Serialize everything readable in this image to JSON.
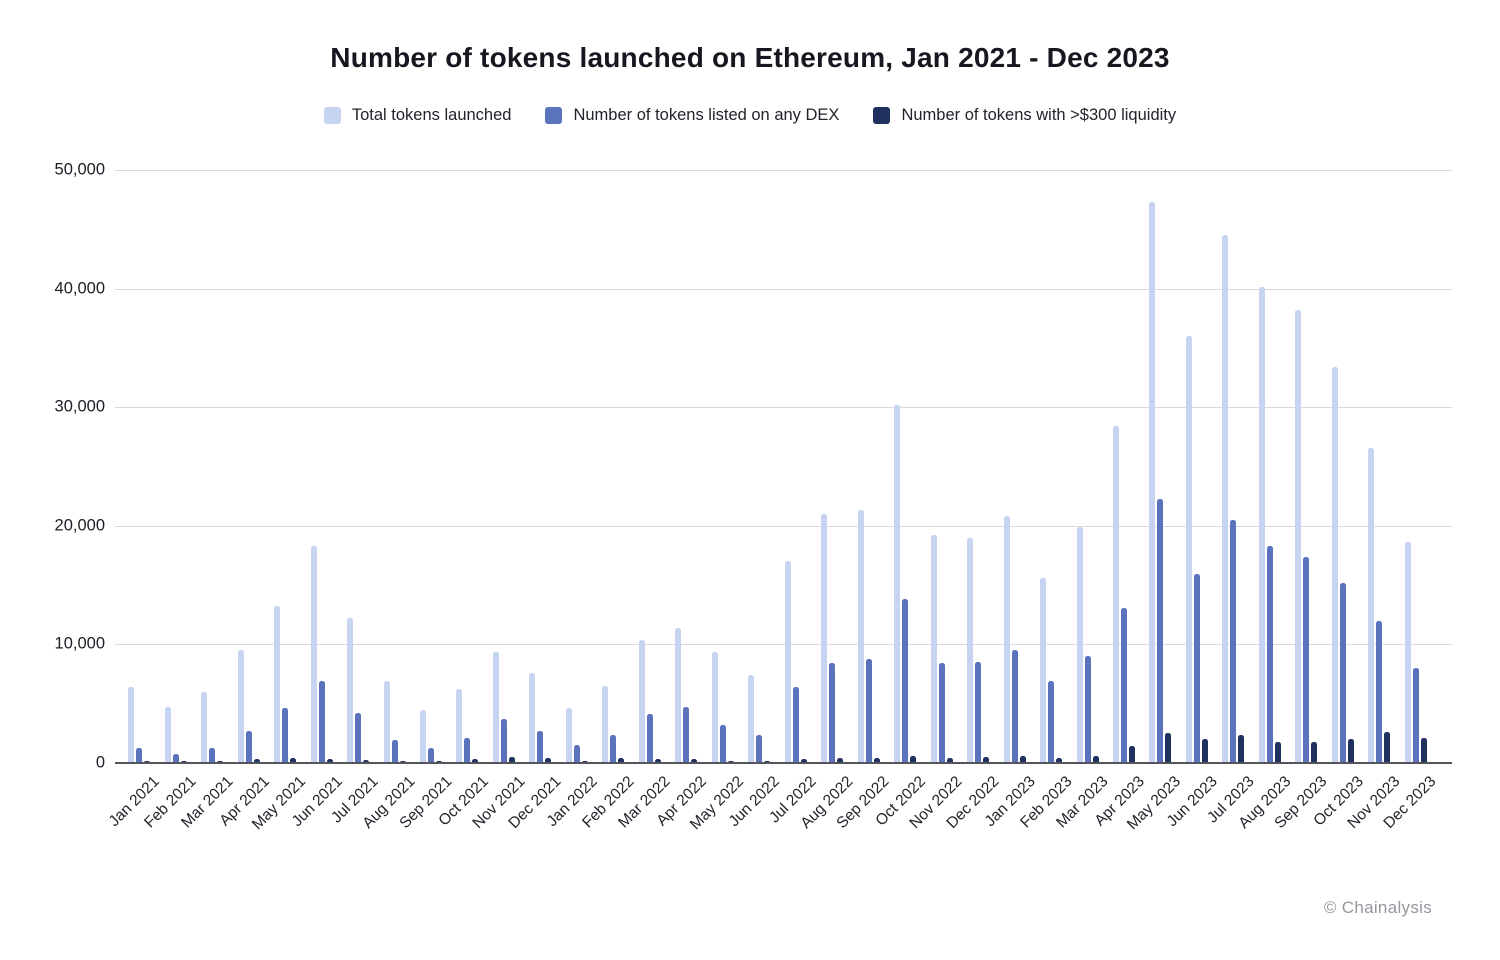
{
  "title": "Number of tokens launched on Ethereum, Jan 2021 - Dec 2023",
  "footer": {
    "copyright": "© Chainalysis"
  },
  "colors": {
    "total": "#c6d3f1",
    "dex": "#5b73bd",
    "liquidity": "#20305f",
    "grid": "#d9d9de",
    "axis": "#55555c"
  },
  "legend": [
    {
      "label": "Total tokens launched",
      "color_key": "total"
    },
    {
      "label": "Number of tokens listed on any DEX",
      "color_key": "dex"
    },
    {
      "label": "Number of tokens with >$300 liquidity",
      "color_key": "liquidity"
    }
  ],
  "chart_data": {
    "type": "bar",
    "title": "Number of tokens launched on Ethereum, Jan 2021 - Dec 2023",
    "xlabel": "",
    "ylabel": "",
    "ylim": [
      0,
      50000
    ],
    "yticks": [
      0,
      10000,
      20000,
      30000,
      40000,
      50000
    ],
    "ytick_labels": [
      "0",
      "10,000",
      "20,000",
      "30,000",
      "40,000",
      "50,000"
    ],
    "grid": true,
    "legend_position": "top",
    "categories": [
      "Jan 2021",
      "Feb 2021",
      "Mar 2021",
      "Apr 2021",
      "May 2021",
      "Jun 2021",
      "Jul 2021",
      "Aug 2021",
      "Sep 2021",
      "Oct 2021",
      "Nov 2021",
      "Dec 2021",
      "Jan 2022",
      "Feb 2022",
      "Mar 2022",
      "Apr 2022",
      "May 2022",
      "Jun 2022",
      "Jul 2022",
      "Aug 2022",
      "Sep 2022",
      "Oct 2022",
      "Nov 2022",
      "Dec 2022",
      "Jan 2023",
      "Feb 2023",
      "Mar 2023",
      "Apr 2023",
      "May 2023",
      "Jun 2023",
      "Jul 2023",
      "Aug 2023",
      "Sep 2023",
      "Oct 2023",
      "Nov 2023",
      "Dec 2023"
    ],
    "series": [
      {
        "name": "Total tokens launched",
        "color_key": "total",
        "values": [
          6400,
          4700,
          6000,
          9500,
          13200,
          18300,
          12200,
          6900,
          4500,
          6200,
          9400,
          7600,
          4600,
          6500,
          10400,
          11400,
          9400,
          7400,
          17000,
          21000,
          21300,
          30200,
          19200,
          19000,
          20800,
          15600,
          19900,
          28400,
          47300,
          36000,
          44500,
          40100,
          38200,
          33400,
          26600,
          18600
        ]
      },
      {
        "name": "Number of tokens listed on any DEX",
        "color_key": "dex",
        "values": [
          1300,
          800,
          1300,
          2700,
          4600,
          6900,
          4200,
          1900,
          1300,
          2100,
          3700,
          2700,
          1500,
          2400,
          4100,
          4700,
          3200,
          2400,
          6400,
          8400,
          8800,
          13800,
          8400,
          8500,
          9500,
          6900,
          9000,
          13100,
          22300,
          15900,
          20500,
          18300,
          17400,
          15200,
          12000,
          8000
        ]
      },
      {
        "name": "Number of tokens with >$300 liquidity",
        "color_key": "liquidity",
        "values": [
          200,
          100,
          150,
          300,
          450,
          300,
          250,
          150,
          120,
          300,
          500,
          400,
          120,
          400,
          300,
          300,
          150,
          150,
          300,
          450,
          400,
          550,
          450,
          500,
          600,
          400,
          600,
          1400,
          2500,
          2000,
          2400,
          1800,
          1800,
          2000,
          2600,
          2100
        ]
      }
    ]
  }
}
